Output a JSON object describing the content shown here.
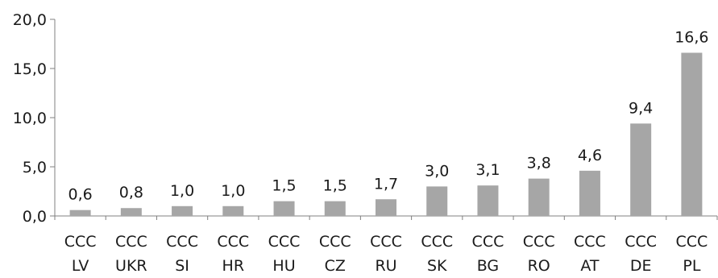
{
  "chart_data": {
    "type": "bar",
    "categories": [
      [
        "CCC",
        "LV"
      ],
      [
        "CCC",
        "UKR"
      ],
      [
        "CCC",
        "SI"
      ],
      [
        "CCC",
        "HR"
      ],
      [
        "CCC",
        "HU"
      ],
      [
        "CCC",
        "CZ"
      ],
      [
        "CCC",
        "RU"
      ],
      [
        "CCC",
        "SK"
      ],
      [
        "CCC",
        "BG"
      ],
      [
        "CCC",
        "RO"
      ],
      [
        "CCC",
        "AT"
      ],
      [
        "CCC",
        "DE"
      ],
      [
        "CCC",
        "PL"
      ]
    ],
    "values": [
      0.6,
      0.8,
      1.0,
      1.0,
      1.5,
      1.5,
      1.7,
      3.0,
      3.1,
      3.8,
      4.6,
      9.4,
      16.6
    ],
    "value_labels": [
      "0,6",
      "0,8",
      "1,0",
      "1,0",
      "1,5",
      "1,5",
      "1,7",
      "3,0",
      "3,1",
      "3,8",
      "4,6",
      "9,4",
      "16,6"
    ],
    "y_ticks": [
      0,
      5,
      10,
      15,
      20
    ],
    "y_tick_labels": [
      "0,0",
      "5,0",
      "10,0",
      "15,0",
      "20,0"
    ],
    "ylim": [
      0,
      20
    ],
    "grid": false,
    "legend": "none",
    "title": "",
    "xlabel": "",
    "ylabel": "",
    "bar_color": "#a6a6a6",
    "axis_color": "#808080"
  }
}
